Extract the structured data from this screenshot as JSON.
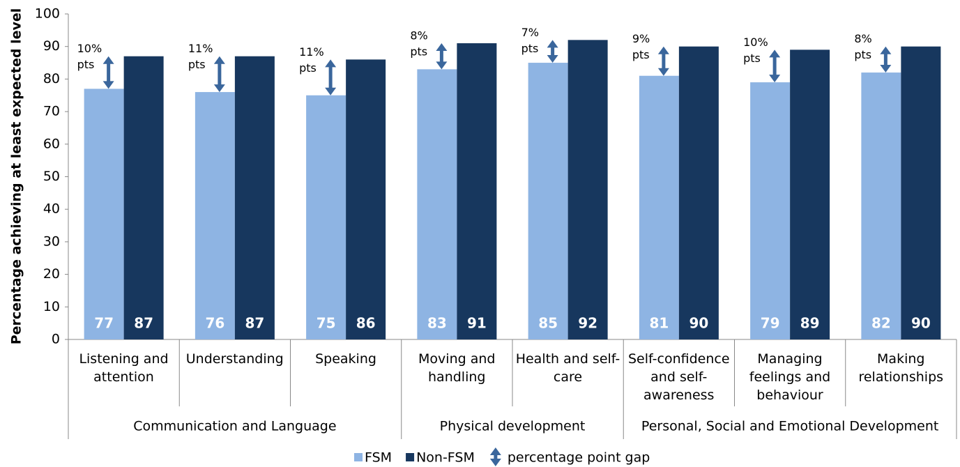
{
  "chart_data": {
    "type": "bar",
    "y_label": "Percentage achieving at least expected level",
    "categories": [
      "Listening and attention",
      "Understanding",
      "Speaking",
      "Moving and handling",
      "Health and self-care",
      "Self-confidence and self-awareness",
      "Managing feelings and behaviour",
      "Making relationships"
    ],
    "groups": [
      {
        "name": "Communication and Language",
        "count": 3
      },
      {
        "name": "Physical development",
        "count": 2
      },
      {
        "name": "Personal, Social and Emotional Development",
        "count": 3
      }
    ],
    "series": [
      {
        "name": "FSM",
        "color": "#8eb4e3",
        "values": [
          77,
          76,
          75,
          83,
          85,
          81,
          79,
          82
        ]
      },
      {
        "name": "Non-FSM",
        "color": "#17375e",
        "values": [
          87,
          87,
          86,
          91,
          92,
          90,
          89,
          90
        ]
      }
    ],
    "gap_labels": [
      [
        "10%",
        "pts"
      ],
      [
        "11%",
        "pts"
      ],
      [
        "11%",
        "pts"
      ],
      [
        "8%",
        "pts"
      ],
      [
        "7%",
        "pts"
      ],
      [
        "9%",
        "pts"
      ],
      [
        "10%",
        "pts"
      ],
      [
        "8%",
        "pts"
      ]
    ],
    "gap_legend": "percentage point gap",
    "arrow_color": "#3a669c",
    "ylim": [
      0,
      100
    ],
    "yticks": [
      0,
      10,
      20,
      30,
      40,
      50,
      60,
      70,
      80,
      90,
      100
    ],
    "grid": false
  }
}
